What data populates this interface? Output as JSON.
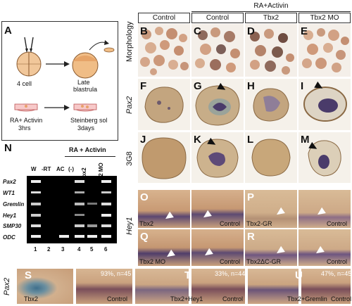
{
  "panel_A": {
    "label": "A",
    "stage1": "4 cell",
    "stage2_line1": "Late",
    "stage2_line2": "blastrula",
    "treat_line1": "RA+ Activin",
    "treat_line2": "3hrs",
    "culture_line1": "Steinberg sol",
    "culture_line2": "3days"
  },
  "header": {
    "group": "RA+Activin",
    "columns": [
      "Control",
      "Control",
      "Tbx2",
      "Tbx2 MO"
    ]
  },
  "row_labels": {
    "morphology": "Morphology",
    "pax2": "Pax2",
    "antibody": "3G8",
    "hey1": "Hey1",
    "pax2_bottom": "Pax2"
  },
  "panel_letters": {
    "B": "B",
    "C": "C",
    "D": "D",
    "E": "E",
    "F": "F",
    "G": "G",
    "H": "H",
    "I": "I",
    "J": "J",
    "K": "K",
    "L": "L",
    "M": "M",
    "N": "N",
    "O": "O",
    "P": "P",
    "Q": "Q",
    "R": "R",
    "S": "S",
    "T": "T",
    "U": "U"
  },
  "panel_N": {
    "group": "RA + Activin",
    "columns": [
      "W",
      "-RT",
      "AC",
      "(-)",
      "Tbx2",
      "Tbx2 MO"
    ],
    "genes": [
      "Pax2",
      "WT1",
      "Gremlin",
      "Hey1",
      "SMP30",
      "ODC"
    ],
    "lanes": [
      "1",
      "2",
      "3",
      "4",
      "5",
      "6"
    ]
  },
  "captions": {
    "O_left": "Tbx2",
    "O_right": "Control",
    "P_left": "Tbx2-GR",
    "P_right": "Control",
    "Q_left": "Tbx2 MO",
    "Q_right": "Control",
    "R_left": "Tbx2ΔC-GR",
    "R_right": "Control",
    "S_left": "Tbx2",
    "S_right": "Control",
    "T_left": "Tbx2+Hey1",
    "T_right": "Control",
    "U_left": "Tbx2+Gremlin",
    "U_right": "Control"
  },
  "stats": {
    "S": "93%, n=45",
    "T": "33%, n=44",
    "U": "47%, n=45"
  },
  "colors": {
    "tissue_brown": "#b07a55",
    "stain_purple": "#4a3b6a",
    "embryo_tan": "#c9a57e"
  }
}
